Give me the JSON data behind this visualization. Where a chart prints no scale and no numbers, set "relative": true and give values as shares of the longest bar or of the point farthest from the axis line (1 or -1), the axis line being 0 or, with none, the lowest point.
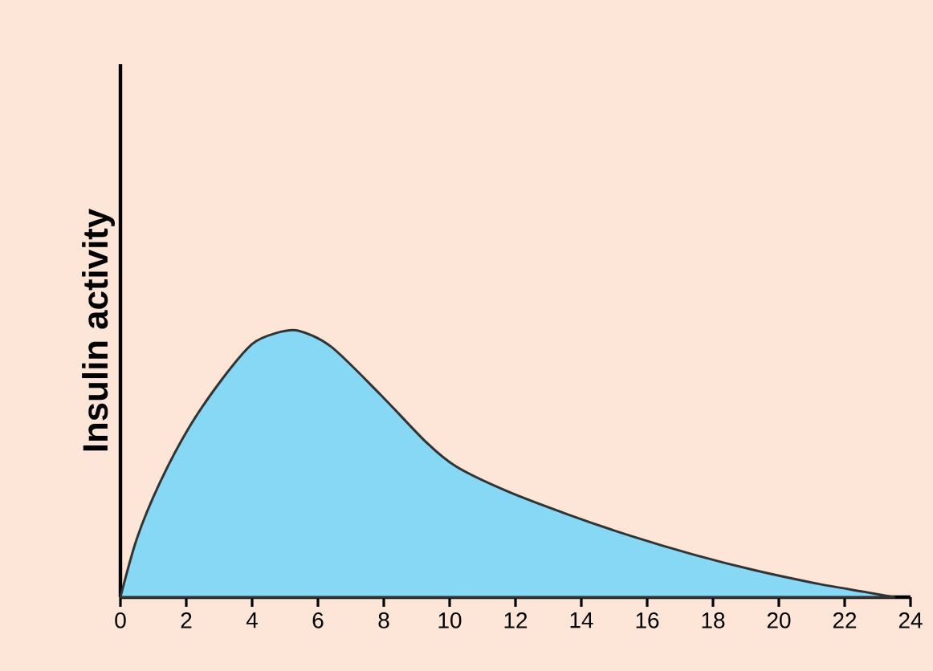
{
  "chart_data": {
    "type": "area",
    "ylabel": "Insulin activity",
    "relative": true,
    "x": [
      0,
      0.5,
      1.2,
      2.1,
      3.1,
      4,
      4.7,
      5.4,
      6.4,
      7.9,
      9.3,
      10.2,
      11.7,
      13.6,
      15.5,
      17.4,
      19.3,
      21.2,
      22.6,
      23.5
    ],
    "series": [
      {
        "color": "#87d8f5",
        "values": [
          0,
          0.22,
          0.43,
          0.64,
          0.82,
          0.95,
          0.99,
          1.0,
          0.94,
          0.76,
          0.58,
          0.49,
          0.4,
          0.31,
          0.23,
          0.16,
          0.1,
          0.05,
          0.02,
          0
        ]
      }
    ],
    "xlim": [
      0,
      24
    ],
    "xticks": [
      0,
      2,
      4,
      6,
      8,
      10,
      12,
      14,
      16,
      18,
      20,
      22,
      24
    ]
  }
}
